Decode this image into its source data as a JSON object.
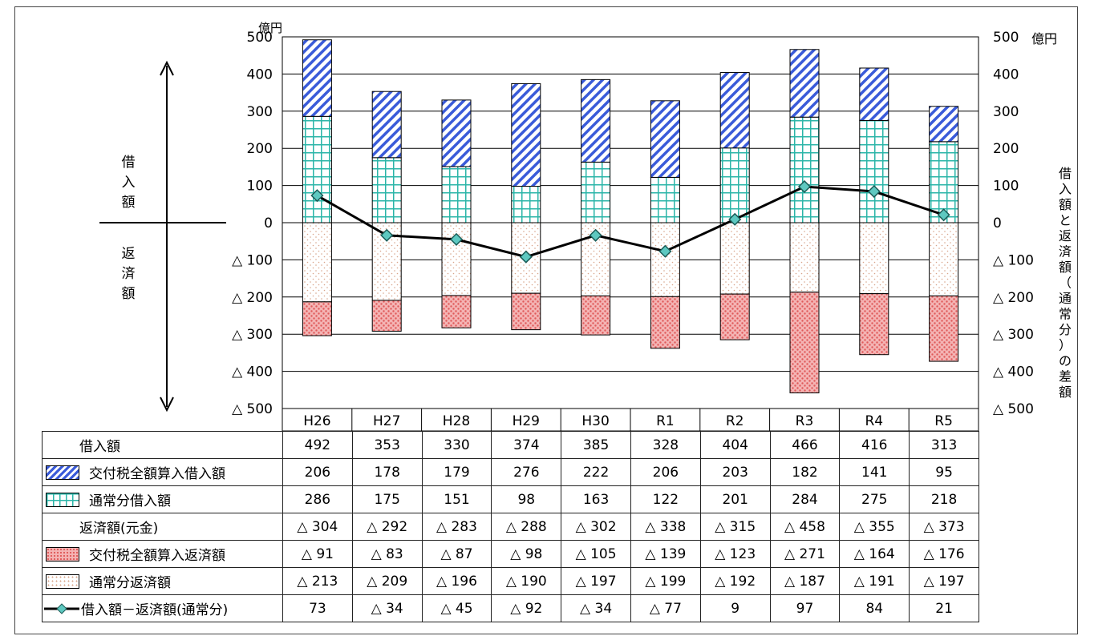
{
  "chart_data": {
    "type": "bar",
    "categories": [
      "H26",
      "H27",
      "H28",
      "H29",
      "H30",
      "R1",
      "R2",
      "R3",
      "R4",
      "R5"
    ],
    "unit_left": "億円",
    "unit_right": "億円",
    "left_axis_ticks": [
      "500",
      "400",
      "300",
      "200",
      "100",
      "0",
      "△ 100",
      "△ 200",
      "△ 300",
      "△ 400",
      "△ 500"
    ],
    "right_axis_ticks": [
      "500",
      "400",
      "300",
      "200",
      "100",
      "0",
      "△ 100",
      "△ 200",
      "△ 300",
      "△ 400",
      "△ 500"
    ],
    "ylim": [
      -500,
      500
    ],
    "grid": true,
    "borrow_label": "借入額",
    "repay_label": "返済額",
    "right_axis_label": "借入額と返済額（通常分）の差額",
    "series": [
      {
        "name": "交付税全額算入借入額",
        "values": [
          206,
          178,
          179,
          276,
          222,
          206,
          203,
          182,
          141,
          95
        ]
      },
      {
        "name": "通常分借入額",
        "values": [
          286,
          175,
          151,
          98,
          163,
          122,
          201,
          284,
          275,
          218
        ]
      },
      {
        "name": "交付税全額算入返済額",
        "values": [
          -91,
          -83,
          -87,
          -98,
          -105,
          -139,
          -123,
          -271,
          -164,
          -176
        ]
      },
      {
        "name": "通常分返済額",
        "values": [
          -213,
          -209,
          -196,
          -190,
          -197,
          -199,
          -192,
          -187,
          -191,
          -197
        ]
      },
      {
        "name": "借入額－返済額（通常分）",
        "type": "line",
        "values": [
          73,
          -34,
          -45,
          -92,
          -34,
          -77,
          9,
          97,
          84,
          21
        ]
      }
    ],
    "colors": {
      "stripe": "#3a5bd9",
      "grid_teal": "#2bb5a8",
      "dot_red": "#e05a5a",
      "dot_beige": "#d9a48a",
      "line": "#000000",
      "marker": "#5ec8c0"
    }
  },
  "table": {
    "rows": [
      {
        "label": "借入額",
        "swatch": "",
        "values": [
          "492",
          "353",
          "330",
          "374",
          "385",
          "328",
          "404",
          "466",
          "416",
          "313"
        ]
      },
      {
        "label": "交付税全額算入借入額",
        "swatch": "stripe",
        "values": [
          "206",
          "178",
          "179",
          "276",
          "222",
          "206",
          "203",
          "182",
          "141",
          "95"
        ]
      },
      {
        "label": "通常分借入額",
        "swatch": "grid",
        "values": [
          "286",
          "175",
          "151",
          "98",
          "163",
          "122",
          "201",
          "284",
          "275",
          "218"
        ]
      },
      {
        "label": "返済額(元金)",
        "swatch": "",
        "values": [
          "△ 304",
          "△ 292",
          "△ 283",
          "△ 288",
          "△ 302",
          "△ 338",
          "△ 315",
          "△ 458",
          "△ 355",
          "△ 373"
        ]
      },
      {
        "label": "交付税全額算入返済額",
        "swatch": "reddots",
        "values": [
          "△ 91",
          "△ 83",
          "△ 87",
          "△ 98",
          "△ 105",
          "△ 139",
          "△ 123",
          "△ 271",
          "△ 164",
          "△ 176"
        ]
      },
      {
        "label": "通常分返済額",
        "swatch": "beigedots",
        "values": [
          "△ 213",
          "△ 209",
          "△ 196",
          "△ 190",
          "△ 197",
          "△ 199",
          "△ 192",
          "△ 187",
          "△ 191",
          "△ 197"
        ]
      },
      {
        "label": "借入額－返済額(通常分)",
        "swatch": "line",
        "values": [
          "73",
          "△ 34",
          "△ 45",
          "△ 92",
          "△ 34",
          "△ 77",
          "9",
          "97",
          "84",
          "21"
        ]
      }
    ]
  }
}
